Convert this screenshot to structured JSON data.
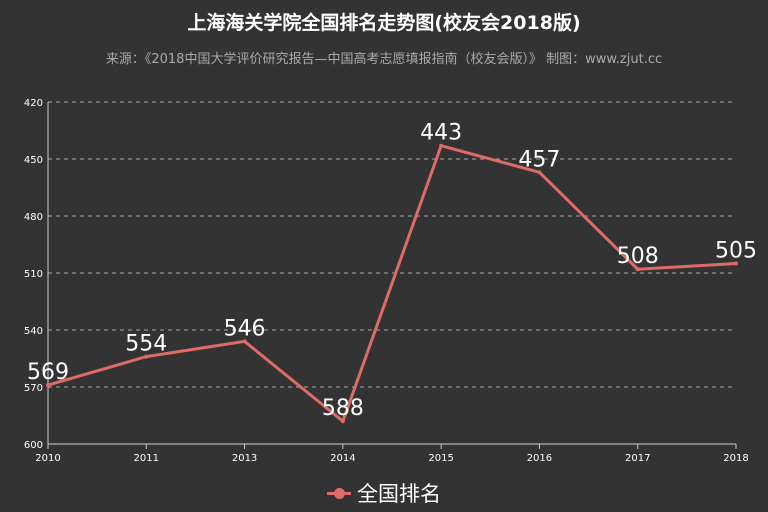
{
  "title": "上海海关学院全国排名走势图(校友会2018版)",
  "subtitle": "来源：《2018中国大学评价研究报告—中国高考志愿填报指南（校友会版）》 制图：www.zjut.cc",
  "legend": {
    "label": "全国排名"
  },
  "colors": {
    "series": "#dd6b66",
    "background": "#333333",
    "axis": "#cccccc",
    "grid": "#aaaaaa"
  },
  "chart_data": {
    "type": "line",
    "x": [
      "2010",
      "2011",
      "2013",
      "2014",
      "2015",
      "2016",
      "2017",
      "2018"
    ],
    "series": [
      {
        "name": "全国排名",
        "values": [
          569,
          554,
          546,
          588,
          443,
          457,
          508,
          505
        ]
      }
    ],
    "yticks": [
      "420",
      "450",
      "480",
      "510",
      "540",
      "570",
      "600"
    ],
    "ylim": [
      420,
      600
    ],
    "y_inverted": true,
    "grid": "horizontal dashed",
    "legend_position": "bottom-center",
    "data_labels": true
  }
}
